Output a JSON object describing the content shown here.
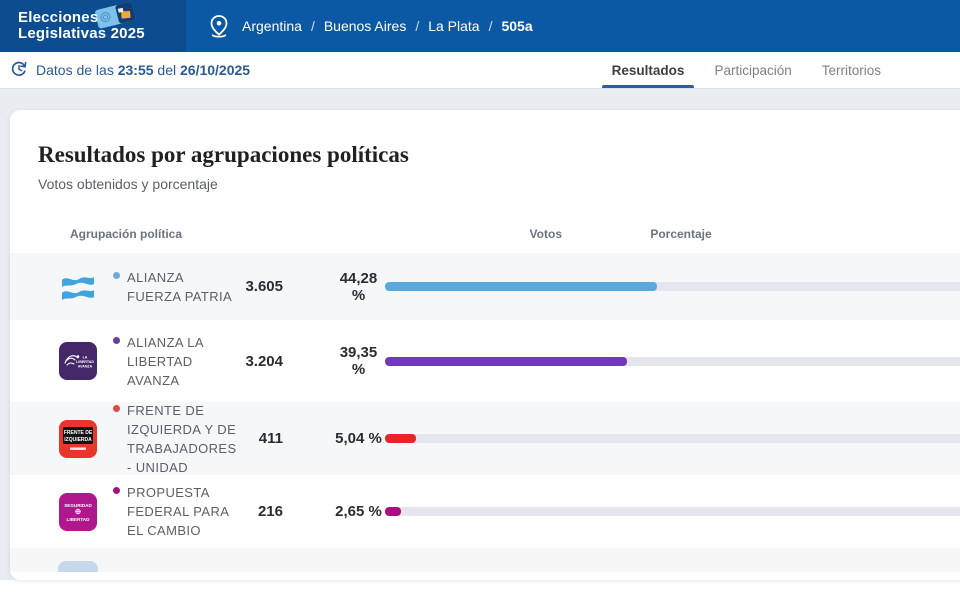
{
  "brand": {
    "line1": "Elecciones",
    "line2": "Legislativas 2025"
  },
  "breadcrumb": {
    "items": [
      "Argentina",
      "Buenos Aires",
      "La Plata"
    ],
    "current": "505a",
    "separator": "/"
  },
  "statusbar": {
    "label_prefix": "Datos de las",
    "time": "23:55",
    "label_mid": "del",
    "date": "26/10/2025"
  },
  "tabs": [
    {
      "label": "Resultados",
      "active": true
    },
    {
      "label": "Participación",
      "active": false
    },
    {
      "label": "Territorios",
      "active": false
    }
  ],
  "card": {
    "title": "Resultados por agrupaciones políticas",
    "subtitle": "Votos obtenidos y porcentaje",
    "columns": {
      "party": "Agrupación política",
      "votes": "Votos",
      "percent": "Porcentaje"
    }
  },
  "results": [
    {
      "party": "ALIANZA FUERZA PATRIA",
      "votes": "3.605",
      "percent": "44,28 %",
      "pct": 44.28,
      "bar_color": "#5aa9dc",
      "bullet_color": "#72a9d4",
      "logo": "fuerza-patria",
      "logo_text": {}
    },
    {
      "party": "ALIANZA LA LIBERTAD AVANZA",
      "votes": "3.204",
      "percent": "39,35 %",
      "pct": 39.35,
      "bar_color": "#7138b9",
      "bullet_color": "#6a3d9e",
      "logo": "lla",
      "logo_text": {
        "l1": "LA",
        "l2": "LIBERTAD",
        "l3": "AVANZA"
      }
    },
    {
      "party": "FRENTE DE IZQUIERDA Y DE TRABAJADORES - UNIDAD",
      "votes": "411",
      "percent": "5,04 %",
      "pct": 5.04,
      "bar_color": "#ec2227",
      "bullet_color": "#df4a41",
      "logo": "fit",
      "logo_text": {
        "l1": "FRENTE DE",
        "l2": "IZQUIERDA"
      }
    },
    {
      "party": "PROPUESTA FEDERAL PARA EL CAMBIO",
      "votes": "216",
      "percent": "2,65 %",
      "pct": 2.65,
      "bar_color": "#a90f80",
      "bullet_color": "#a8127e",
      "logo": "syl",
      "logo_text": {
        "l1": "SEGURIDAD",
        "l2": "LIBERTAD"
      }
    }
  ],
  "partial_row_visible": true,
  "colors": {
    "header_left": "#0d4d8f",
    "header_right": "#0b58a5",
    "accent_blue": "#2a5a96",
    "tab_underline": "#2e5d9d",
    "page_bg": "#e9edf2",
    "row_alt_bg": "#f6f7f9",
    "bar_track": "#e5e5ed"
  }
}
